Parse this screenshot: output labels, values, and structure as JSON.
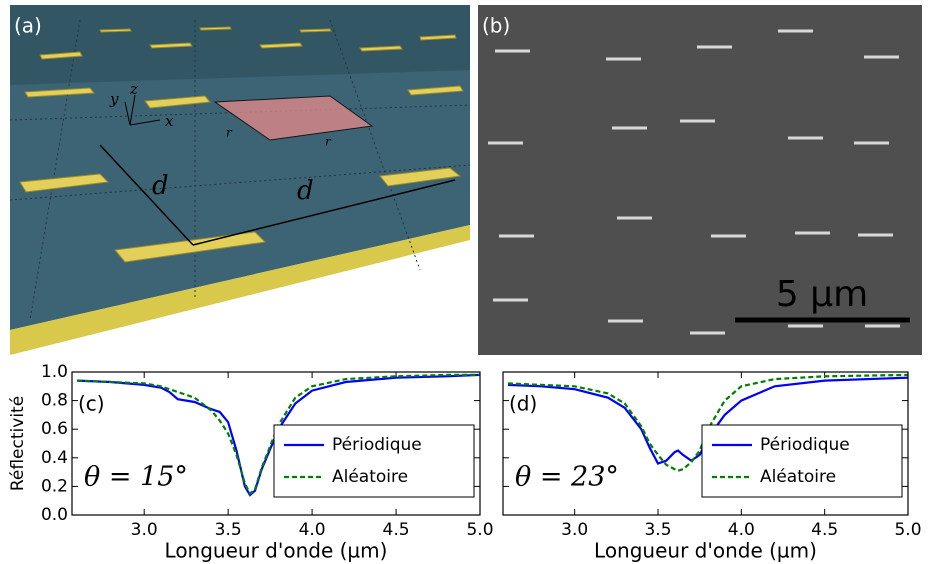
{
  "panel_a": {
    "label": "(a)",
    "axis_labels": [
      "x",
      "y",
      "z"
    ],
    "distances": [
      "d",
      "d"
    ],
    "side_labels": [
      "r",
      "r"
    ]
  },
  "panel_b": {
    "label": "(b)",
    "scale_bar": "5 µm"
  },
  "chart_data": [
    {
      "type": "line",
      "panel_label": "(c)",
      "annotation": "θ = 15°",
      "ylabel": "Réflectivité",
      "xlabel": "Longueur d'onde (µm)",
      "x": [
        2.6,
        2.8,
        3.0,
        3.1,
        3.15,
        3.2,
        3.3,
        3.4,
        3.45,
        3.5,
        3.55,
        3.6,
        3.63,
        3.66,
        3.7,
        3.8,
        3.9,
        4.0,
        4.2,
        4.5,
        4.8,
        5.0
      ],
      "series": [
        {
          "name": "Périodique",
          "color": "#0000ff",
          "style": "solid",
          "values": [
            0.94,
            0.93,
            0.91,
            0.89,
            0.86,
            0.81,
            0.79,
            0.74,
            0.72,
            0.65,
            0.45,
            0.2,
            0.14,
            0.17,
            0.32,
            0.6,
            0.78,
            0.87,
            0.93,
            0.96,
            0.97,
            0.98
          ]
        },
        {
          "name": "Aléatoire",
          "color": "#008000",
          "style": "dashed",
          "values": [
            0.94,
            0.93,
            0.92,
            0.9,
            0.88,
            0.86,
            0.82,
            0.73,
            0.66,
            0.57,
            0.42,
            0.22,
            0.15,
            0.18,
            0.33,
            0.63,
            0.82,
            0.9,
            0.95,
            0.97,
            0.98,
            0.98
          ]
        }
      ],
      "xlim": [
        2.57,
        5.0
      ],
      "ylim": [
        0,
        1
      ],
      "xticks": [
        {
          "value": 3,
          "label": "3.0"
        },
        3.5,
        {
          "value": 4,
          "label": "4.0"
        },
        4.5,
        {
          "value": 5,
          "label": "5.0"
        }
      ],
      "yticks": [
        {
          "value": 0,
          "label": "0.0"
        },
        0.2,
        0.4,
        0.6,
        0.8,
        {
          "value": 1,
          "label": "1.0"
        }
      ],
      "ytick_labels": true,
      "legend": "lower right"
    },
    {
      "type": "line",
      "panel_label": "(d)",
      "annotation": "θ = 23°",
      "xlabel": "Longueur d'onde (µm)",
      "x": [
        2.6,
        2.8,
        3.0,
        3.2,
        3.3,
        3.4,
        3.45,
        3.5,
        3.55,
        3.6,
        3.62,
        3.65,
        3.7,
        3.75,
        3.8,
        3.9,
        4.0,
        4.2,
        4.5,
        5.0
      ],
      "series": [
        {
          "name": "Périodique",
          "color": "#0000ff",
          "style": "solid",
          "values": [
            0.91,
            0.9,
            0.88,
            0.82,
            0.75,
            0.6,
            0.47,
            0.36,
            0.38,
            0.44,
            0.45,
            0.42,
            0.38,
            0.42,
            0.54,
            0.7,
            0.8,
            0.9,
            0.94,
            0.96
          ]
        },
        {
          "name": "Aléatoire",
          "color": "#008000",
          "style": "dashed",
          "values": [
            0.92,
            0.91,
            0.9,
            0.85,
            0.78,
            0.62,
            0.5,
            0.42,
            0.35,
            0.32,
            0.31,
            0.32,
            0.37,
            0.45,
            0.6,
            0.8,
            0.9,
            0.95,
            0.97,
            0.98
          ]
        }
      ],
      "xlim": [
        2.57,
        5.0
      ],
      "ylim": [
        0,
        1
      ],
      "xticks": [
        {
          "value": 3,
          "label": "3.0"
        },
        3.5,
        {
          "value": 4,
          "label": "4.0"
        },
        4.5,
        {
          "value": 5,
          "label": "5.0"
        }
      ],
      "yticks": [
        0,
        0.2,
        0.4,
        0.6,
        0.8,
        1
      ],
      "ytick_labels": false,
      "legend": "lower right"
    }
  ]
}
